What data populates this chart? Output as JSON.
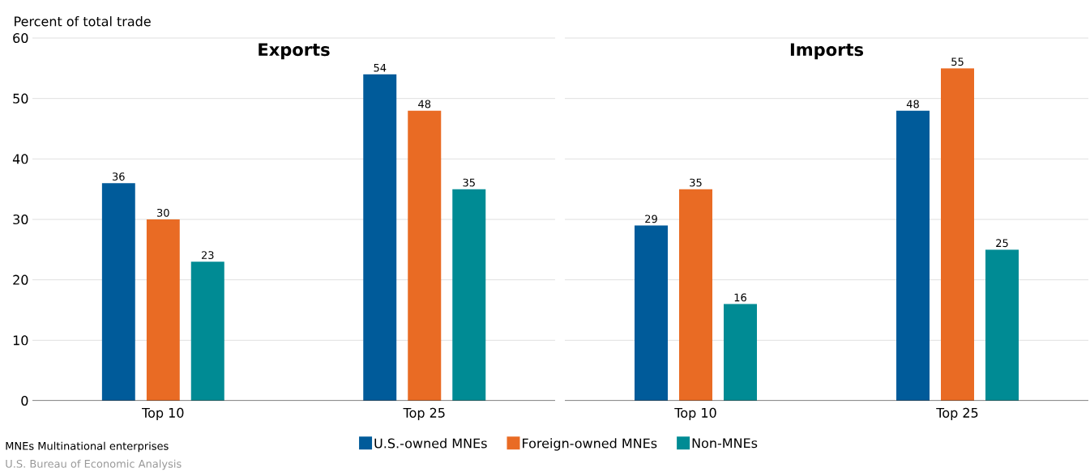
{
  "chart_data": [
    {
      "type": "bar",
      "title": "Exports",
      "ylabel": "Percent of total trade",
      "categories": [
        "Top 10",
        "Top 25"
      ],
      "ylim": [
        0,
        60
      ],
      "yticks": [
        0,
        10,
        20,
        30,
        40,
        50,
        60
      ],
      "grid": "y",
      "data_labels": true,
      "legend": "bottom",
      "series": [
        {
          "name": "U.S.-owned MNEs",
          "color": "#005b9a",
          "values": [
            36,
            54
          ]
        },
        {
          "name": "Foreign-owned MNEs",
          "color": "#e96b24",
          "values": [
            30,
            48
          ]
        },
        {
          "name": "Non-MNEs",
          "color": "#008b94",
          "values": [
            23,
            35
          ]
        }
      ],
      "annotations": [
        "MNEs  Multinational enterprises",
        "U.S. Bureau of Economic Analysis"
      ]
    },
    {
      "type": "bar",
      "title": "Imports",
      "categories": [
        "Top 10",
        "Top 25"
      ],
      "ylim": [
        0,
        60
      ],
      "yticks": [
        0,
        10,
        20,
        30,
        40,
        50,
        60
      ],
      "grid": "y",
      "data_labels": true,
      "tick_labels": "x",
      "series": [
        {
          "color": "#005b9a",
          "values": [
            29,
            48
          ]
        },
        {
          "color": "#e96b24",
          "values": [
            35,
            55
          ]
        },
        {
          "color": "#008b94",
          "values": [
            16,
            25
          ]
        }
      ]
    }
  ]
}
